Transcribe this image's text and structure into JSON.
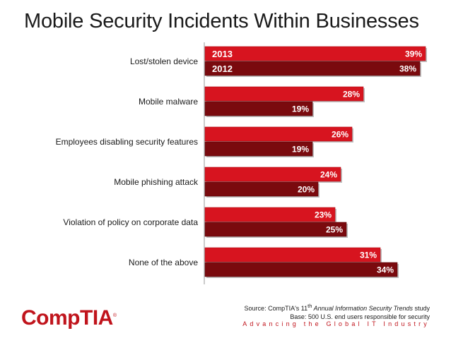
{
  "title": "Mobile Security Incidents Within Businesses",
  "chart_data": {
    "type": "bar",
    "orientation": "horizontal",
    "categories": [
      "Lost/stolen device",
      "Mobile malware",
      "Employees disabling security features",
      "Mobile phishing attack",
      "Violation of policy on corporate data",
      "None of the above"
    ],
    "series": [
      {
        "name": "2013",
        "values": [
          39,
          28,
          26,
          24,
          23,
          31
        ],
        "labels": [
          "39%",
          "28%",
          "26%",
          "24%",
          "23%",
          "31%"
        ],
        "color": "#d7141f"
      },
      {
        "name": "2012",
        "values": [
          38,
          19,
          19,
          20,
          25,
          34
        ],
        "labels": [
          "38%",
          "19%",
          "19%",
          "20%",
          "25%",
          "34%"
        ],
        "color": "#7a0a0e"
      }
    ],
    "xlim": [
      0,
      40
    ],
    "legend_placement": "inside first bars",
    "grid": false
  },
  "source": {
    "prefix": "Source: CompTIA's 11",
    "sup": "th",
    "italic": " Annual Information Security Trends",
    "suffix": " study",
    "base": "Base: 500 U.S. end users responsible for security"
  },
  "tagline": "Advancing the Global IT Industry",
  "logo": {
    "text": "CompTIA",
    "mark": "®"
  },
  "colors": {
    "accent": "#c0141c"
  }
}
